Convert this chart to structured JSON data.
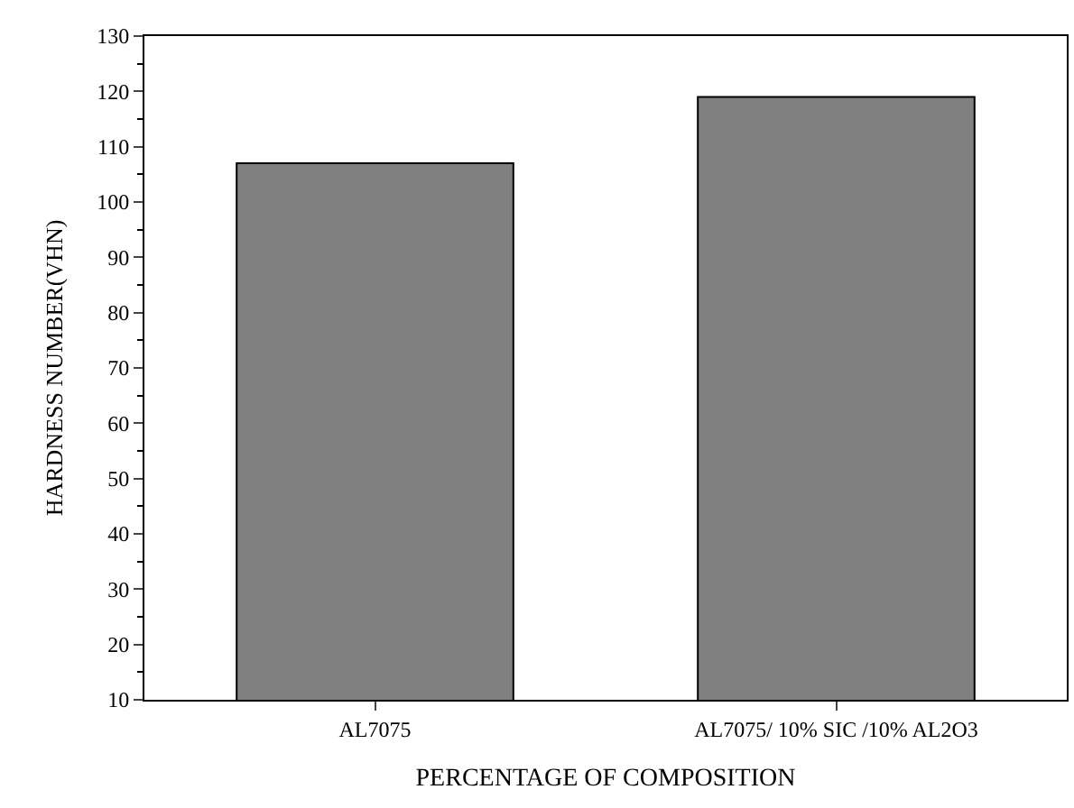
{
  "chart_data": {
    "type": "bar",
    "xlabel": "PERCENTAGE OF COMPOSITION",
    "ylabel": "HARDNESS NUMBER(VHN)",
    "categories": [
      "AL7075",
      "AL7075/ 10% SIC /10% AL2O3"
    ],
    "values": [
      107,
      119
    ],
    "color": "#808080",
    "ylim": [
      10,
      130
    ],
    "yticks": [
      10,
      20,
      30,
      40,
      50,
      60,
      70,
      80,
      90,
      100,
      110,
      120,
      130
    ]
  }
}
